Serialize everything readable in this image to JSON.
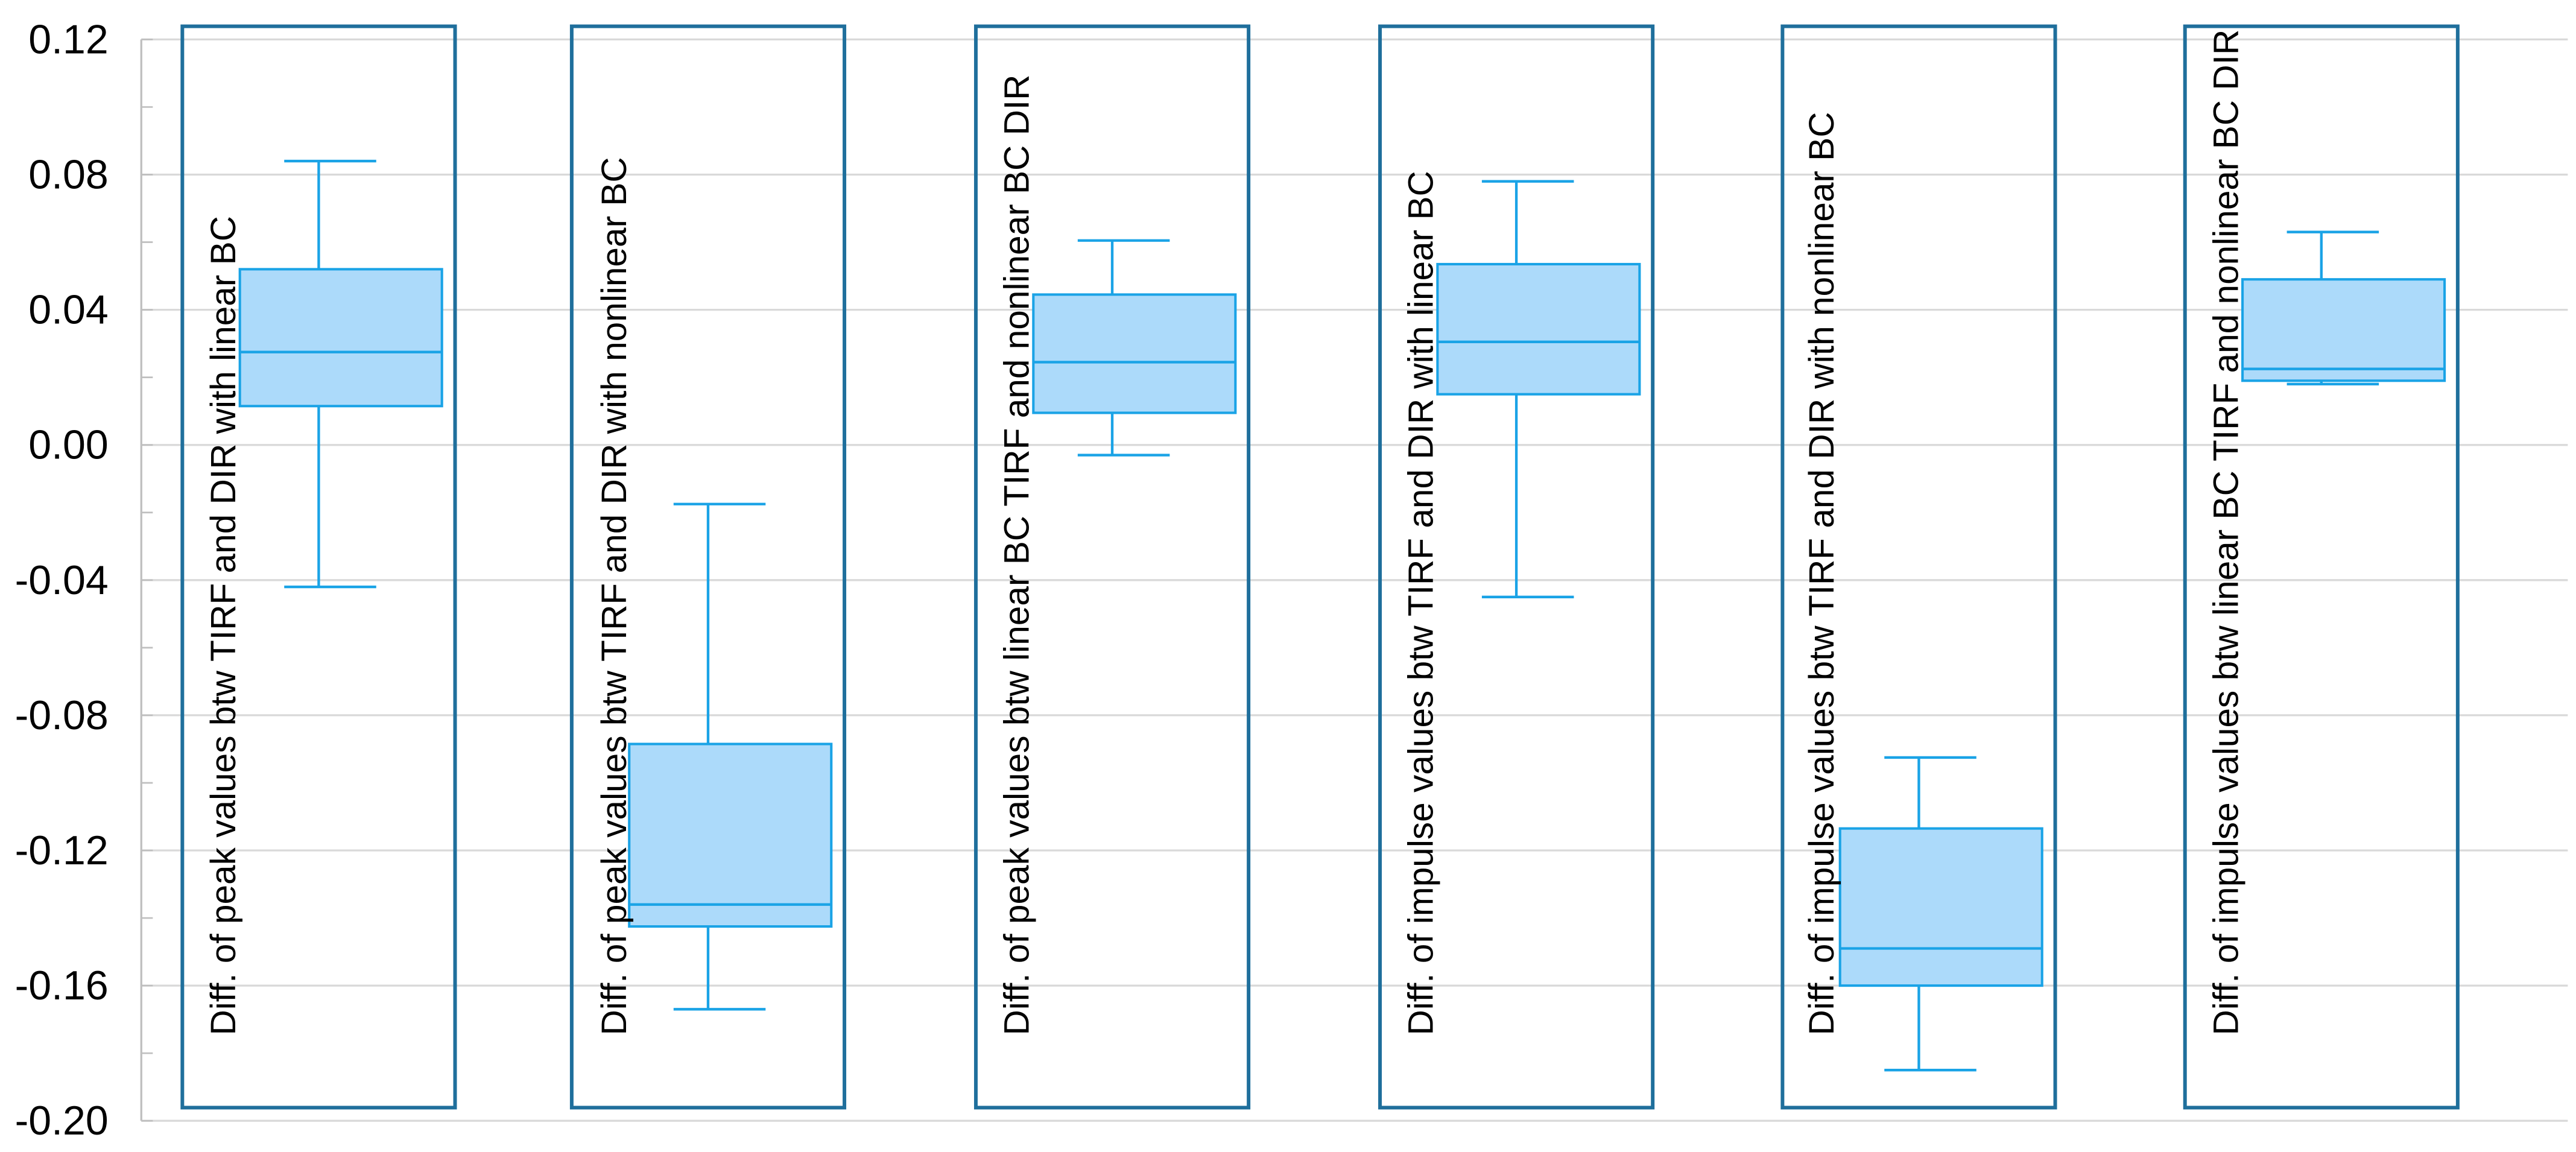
{
  "chart_data": {
    "type": "box",
    "title": "",
    "xlabel": "",
    "ylabel": "",
    "ylim": [
      -0.2,
      0.12
    ],
    "yticks": [
      "0.12",
      "0.08",
      "0.04",
      "0.00",
      "-0.04",
      "-0.08",
      "-0.12",
      "-0.16",
      "-0.20"
    ],
    "ytick_values": [
      0.12,
      0.08,
      0.04,
      0.0,
      -0.04,
      -0.08,
      -0.12,
      -0.16,
      -0.2
    ],
    "minor_ytick_step": 0.02,
    "grid": true,
    "categories": [
      "Diff. of peak values btw TIRF and DIR with linear BC",
      "Diff. of peak values btw TIRF and DIR with nonlinear BC",
      "Diff. of peak values btw linear BC TIRF and nonlinear BC DIR",
      "Diff. of impulse values btw TIRF and DIR with linear BC",
      "Diff. of impulse values btw TIRF and DIR with nonlinear BC",
      "Diff. of impulse values btw linear BC TIRF and nonlinear BC DIR"
    ],
    "boxes": [
      {
        "min": -0.042,
        "q1": 0.0115,
        "median": 0.0275,
        "q3": 0.052,
        "max": 0.084
      },
      {
        "min": -0.167,
        "q1": -0.1425,
        "median": -0.136,
        "q3": -0.0885,
        "max": -0.0175
      },
      {
        "min": -0.003,
        "q1": 0.0095,
        "median": 0.0245,
        "q3": 0.0445,
        "max": 0.0605
      },
      {
        "min": -0.045,
        "q1": 0.015,
        "median": 0.0305,
        "q3": 0.0535,
        "max": 0.078
      },
      {
        "min": -0.185,
        "q1": -0.16,
        "median": -0.149,
        "q3": -0.1135,
        "max": -0.0925
      },
      {
        "min": 0.018,
        "q1": 0.019,
        "median": 0.0225,
        "q3": 0.049,
        "max": 0.063
      }
    ],
    "colors": {
      "box_fill": "#acdafa",
      "box_stroke": "#1aa3e6",
      "frame_stroke": "#1f6f9c",
      "grid": "#d9d9d9"
    }
  }
}
